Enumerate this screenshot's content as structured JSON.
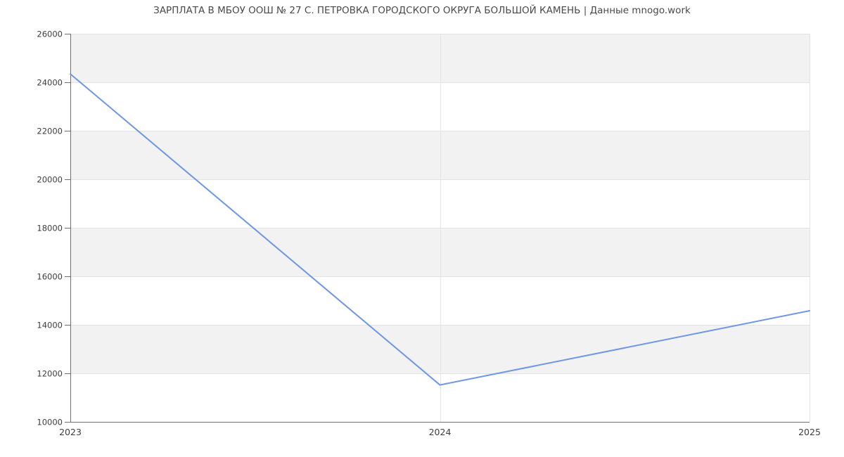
{
  "chart_data": {
    "type": "line",
    "title": "ЗАРПЛАТА В МБОУ ООШ № 27 С. ПЕТРОВКА ГОРОДСКОГО ОКРУГА БОЛЬШОЙ КАМЕНЬ | Данные mnogo.work",
    "categories": [
      "2023",
      "2024",
      "2025"
    ],
    "values": [
      24340,
      11520,
      14580
    ],
    "xlabel": "",
    "ylabel": "",
    "ylim": [
      10000,
      26000
    ],
    "ytick_step": 2000,
    "yticks": [
      10000,
      12000,
      14000,
      16000,
      18000,
      20000,
      22000,
      24000,
      26000
    ],
    "grid": true,
    "legend": false,
    "banded_background": true,
    "style": {
      "line_color": "#6e96e6",
      "band_color": "#f2f2f2",
      "grid_color": "#e3e3e3",
      "axis_color": "#6f6f6f",
      "tick_label_color": "#3d3d3d",
      "title_color": "#4a4a4a",
      "background_color": "#ffffff"
    }
  }
}
